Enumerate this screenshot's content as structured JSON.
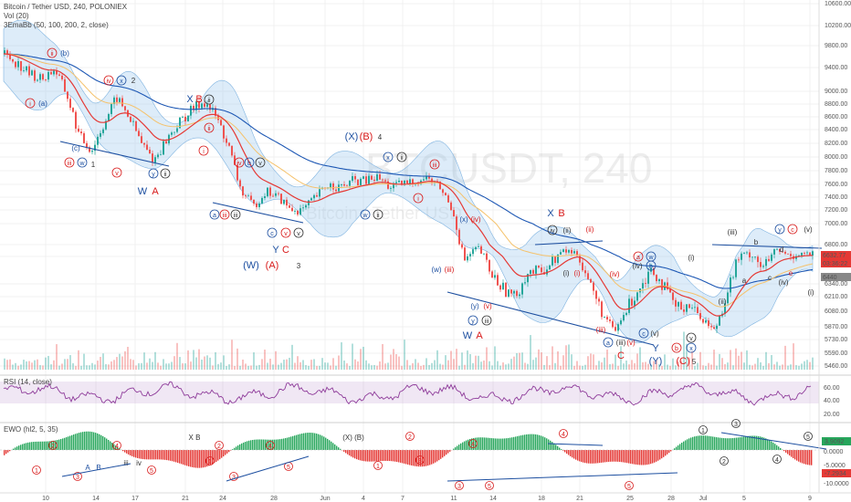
{
  "header": {
    "symbol_line": "Bitcoin / Tether USD, 240, POLONIEX",
    "vol_line": "Vol (20)",
    "ema_line": "3EmaBb (50, 100, 200, 2, close)",
    "rsi_line": "RSI (14, close)",
    "ewo_line": "EWO (hl2, 5, 35)"
  },
  "watermark": {
    "main": "BTCUSDT, 240",
    "sub": "Bitcoin / Tether USD"
  },
  "colors": {
    "up": "#26a69a",
    "down": "#ef5350",
    "ema50": "#e53935",
    "ema100": "#f5c26b",
    "ema200": "#1e58b4",
    "band": "#9ec9ee",
    "rsi": "#8e3b9a",
    "wave_red": "#d81b1b",
    "wave_blue": "#1d4fa0",
    "ewo_up": "#26a65b",
    "ewo_down": "#e53935"
  },
  "chart_data": [
    {
      "type": "line",
      "name": "price",
      "y_axis_ticks": [
        10600,
        10200,
        9800,
        9400,
        9000,
        8800,
        8600,
        8400,
        8200,
        8000,
        7800,
        7600,
        7400,
        7200,
        7000,
        6800,
        6600,
        6340,
        6210,
        6080,
        5870,
        5730,
        5590,
        5460
      ],
      "price_labels": [
        {
          "value": "6632.77",
          "kind": "current"
        },
        {
          "value": "03:36:22",
          "kind": "timer"
        },
        {
          "value": "6440",
          "kind": "level"
        }
      ],
      "x_ticks": [
        "10",
        "14",
        "17",
        "21",
        "24",
        "28",
        "Jun",
        "4",
        "7",
        "11",
        "14",
        "18",
        "21",
        "25",
        "28",
        "Jul",
        "5",
        "9"
      ],
      "close_path": [
        9650,
        9480,
        9300,
        9200,
        9380,
        8950,
        8300,
        8100,
        8500,
        8900,
        8600,
        8200,
        7950,
        8250,
        8500,
        8700,
        8850,
        8600,
        8150,
        7500,
        7250,
        7500,
        7400,
        7200,
        7200,
        7400,
        7600,
        7550,
        7650,
        7650,
        7700,
        7550,
        7600,
        7650,
        7700,
        7550,
        7200,
        6550,
        6750,
        6450,
        6300,
        6200,
        6450,
        6450,
        6550,
        6700,
        6650,
        6350,
        6050,
        5800,
        6100,
        6300,
        6500,
        6300,
        6100,
        6150,
        6000,
        5820,
        6250,
        6600,
        6650,
        6480,
        6700,
        6620,
        6650,
        6632
      ]
    },
    {
      "type": "line",
      "name": "RSI (14, close)",
      "y_axis_ticks": [
        60,
        40,
        20
      ],
      "bands": [
        70,
        30
      ]
    },
    {
      "type": "bar",
      "name": "EWO (hl2, 5, 35)",
      "y_axis_ticks": [
        5,
        0,
        -5,
        -10
      ],
      "labels": [
        {
          "value": "3.9092",
          "kind": "up"
        },
        {
          "value": "-7.2934",
          "kind": "down"
        }
      ]
    }
  ],
  "waves": [
    {
      "t": "ii",
      "c": "red",
      "s": "c"
    },
    {
      "t": "(b)",
      "c": "blue",
      "s": "n"
    },
    {
      "t": "i",
      "c": "red",
      "s": "c"
    },
    {
      "t": "(a)",
      "c": "blue",
      "s": "n"
    },
    {
      "t": "iv",
      "c": "red",
      "s": "c"
    },
    {
      "t": "x",
      "c": "blue",
      "s": "c"
    },
    {
      "t": "2",
      "c": "dark",
      "s": "n"
    },
    {
      "t": "(c)",
      "c": "blue",
      "s": "n"
    },
    {
      "t": "iii",
      "c": "red",
      "s": "c"
    },
    {
      "t": "w",
      "c": "blue",
      "s": "c"
    },
    {
      "t": "1",
      "c": "dark",
      "s": "n"
    },
    {
      "t": "v",
      "c": "red",
      "s": "c"
    },
    {
      "t": "y",
      "c": "blue",
      "s": "c"
    },
    {
      "t": "ii",
      "c": "dark",
      "s": "c"
    },
    {
      "t": "W",
      "c": "blue",
      "s": "n"
    },
    {
      "t": "A",
      "c": "red",
      "s": "n"
    },
    {
      "t": "X",
      "c": "blue",
      "s": "n"
    },
    {
      "t": "B",
      "c": "red",
      "s": "n"
    },
    {
      "t": "ii",
      "c": "dark",
      "s": "c"
    },
    {
      "t": "ii",
      "c": "red",
      "s": "c"
    },
    {
      "t": "i",
      "c": "red",
      "s": "c"
    },
    {
      "t": "iv",
      "c": "red",
      "s": "c"
    },
    {
      "t": "b",
      "c": "blue",
      "s": "c"
    },
    {
      "t": "v",
      "c": "dark",
      "s": "c"
    },
    {
      "t": "a",
      "c": "blue",
      "s": "c"
    },
    {
      "t": "iii",
      "c": "red",
      "s": "c"
    },
    {
      "t": "iii",
      "c": "dark",
      "s": "c"
    },
    {
      "t": "c",
      "c": "blue",
      "s": "c"
    },
    {
      "t": "v",
      "c": "red",
      "s": "c"
    },
    {
      "t": "v",
      "c": "dark",
      "s": "c"
    },
    {
      "t": "Y",
      "c": "blue",
      "s": "n"
    },
    {
      "t": "C",
      "c": "red",
      "s": "n"
    },
    {
      "t": "(W)",
      "c": "blue",
      "s": "n"
    },
    {
      "t": "(A)",
      "c": "red",
      "s": "n"
    },
    {
      "t": "3",
      "c": "dark",
      "s": "n"
    },
    {
      "t": "(X)",
      "c": "blue",
      "s": "n"
    },
    {
      "t": "(B)",
      "c": "red",
      "s": "n"
    },
    {
      "t": "4",
      "c": "dark",
      "s": "n"
    },
    {
      "t": "x",
      "c": "blue",
      "s": "c"
    },
    {
      "t": "ii",
      "c": "dark",
      "s": "c"
    },
    {
      "t": "iii",
      "c": "red",
      "s": "c"
    },
    {
      "t": "i",
      "c": "red",
      "s": "c"
    },
    {
      "t": "w",
      "c": "blue",
      "s": "c"
    },
    {
      "t": "ii",
      "c": "dark",
      "s": "c"
    },
    {
      "t": "(x)",
      "c": "blue",
      "s": "n"
    },
    {
      "t": "(iv)",
      "c": "red",
      "s": "n"
    },
    {
      "t": "(w)",
      "c": "blue",
      "s": "n"
    },
    {
      "t": "(iii)",
      "c": "red",
      "s": "n"
    },
    {
      "t": "(y)",
      "c": "blue",
      "s": "n"
    },
    {
      "t": "(v)",
      "c": "red",
      "s": "n"
    },
    {
      "t": "y",
      "c": "blue",
      "s": "c"
    },
    {
      "t": "iii",
      "c": "dark",
      "s": "c"
    },
    {
      "t": "W",
      "c": "blue",
      "s": "n"
    },
    {
      "t": "A",
      "c": "red",
      "s": "n"
    },
    {
      "t": "X",
      "c": "blue",
      "s": "n"
    },
    {
      "t": "B",
      "c": "red",
      "s": "n"
    },
    {
      "t": "iv",
      "c": "dark",
      "s": "c"
    },
    {
      "t": "(ii)",
      "c": "dark",
      "s": "n"
    },
    {
      "t": "(ii)",
      "c": "red",
      "s": "n"
    },
    {
      "t": "(i)",
      "c": "dark",
      "s": "n"
    },
    {
      "t": "(i)",
      "c": "red",
      "s": "n"
    },
    {
      "t": "a",
      "c": "red",
      "s": "c"
    },
    {
      "t": "w",
      "c": "blue",
      "s": "c"
    },
    {
      "t": "(iv)",
      "c": "red",
      "s": "n"
    },
    {
      "t": "(iv)",
      "c": "dark",
      "s": "n"
    },
    {
      "t": "b",
      "c": "blue",
      "s": "c"
    },
    {
      "t": "(iii)",
      "c": "red",
      "s": "n"
    },
    {
      "t": "a",
      "c": "blue",
      "s": "c"
    },
    {
      "t": "(iii)",
      "c": "dark",
      "s": "n"
    },
    {
      "t": "(v)",
      "c": "red",
      "s": "n"
    },
    {
      "t": "C",
      "c": "red",
      "s": "n"
    },
    {
      "t": "Y",
      "c": "blue",
      "s": "n"
    },
    {
      "t": "(Y)",
      "c": "blue",
      "s": "n"
    },
    {
      "t": "c",
      "c": "blue",
      "s": "c"
    },
    {
      "t": "(v)",
      "c": "dark",
      "s": "n"
    },
    {
      "t": "v",
      "c": "dark",
      "s": "c"
    },
    {
      "t": "b",
      "c": "red",
      "s": "c"
    },
    {
      "t": "x",
      "c": "blue",
      "s": "c"
    },
    {
      "t": "(C)",
      "c": "red",
      "s": "n"
    },
    {
      "t": "5",
      "c": "dark",
      "s": "n"
    },
    {
      "t": "(i)",
      "c": "dark",
      "s": "n"
    },
    {
      "t": "(ii)",
      "c": "dark",
      "s": "n"
    },
    {
      "t": "(iii)",
      "c": "dark",
      "s": "n"
    },
    {
      "t": "b",
      "c": "dark",
      "s": "n"
    },
    {
      "t": "a",
      "c": "dark",
      "s": "n"
    },
    {
      "t": "y",
      "c": "blue",
      "s": "c"
    },
    {
      "t": "c",
      "c": "red",
      "s": "c"
    },
    {
      "t": "(v)",
      "c": "dark",
      "s": "n"
    },
    {
      "t": "d",
      "c": "dark",
      "s": "n"
    },
    {
      "t": "c",
      "c": "dark",
      "s": "n"
    },
    {
      "t": "e",
      "c": "red",
      "s": "n"
    },
    {
      "t": "(iv)",
      "c": "dark",
      "s": "n"
    },
    {
      "t": "(i)",
      "c": "dark",
      "s": "n"
    }
  ],
  "ewo_marks": [
    {
      "t": "1",
      "c": "red"
    },
    {
      "t": "2",
      "c": "red"
    },
    {
      "t": "3",
      "c": "red"
    },
    {
      "t": "4",
      "c": "red"
    },
    {
      "t": "5",
      "c": "red"
    },
    {
      "t": "A",
      "c": "blue"
    },
    {
      "t": "B",
      "c": "blue"
    },
    {
      "t": "iii",
      "c": "dark"
    },
    {
      "t": "iv",
      "c": "dark"
    },
    {
      "t": "X B",
      "c": "dark"
    },
    {
      "t": "1",
      "c": "red"
    },
    {
      "t": "2",
      "c": "red"
    },
    {
      "t": "3",
      "c": "red"
    },
    {
      "t": "4",
      "c": "red"
    },
    {
      "t": "5",
      "c": "red"
    },
    {
      "t": "(X) (B)",
      "c": "dark"
    },
    {
      "t": "1",
      "c": "red"
    },
    {
      "t": "2",
      "c": "red"
    },
    {
      "t": "3",
      "c": "red"
    },
    {
      "t": "4",
      "c": "red"
    },
    {
      "t": "5",
      "c": "red"
    },
    {
      "t": "4",
      "c": "red"
    },
    {
      "t": "5",
      "c": "red"
    },
    {
      "t": "3",
      "c": "red"
    },
    {
      "t": "1",
      "c": "dark"
    },
    {
      "t": "2",
      "c": "dark"
    },
    {
      "t": "3",
      "c": "dark"
    },
    {
      "t": "4",
      "c": "dark"
    },
    {
      "t": "5",
      "c": "dark"
    }
  ]
}
